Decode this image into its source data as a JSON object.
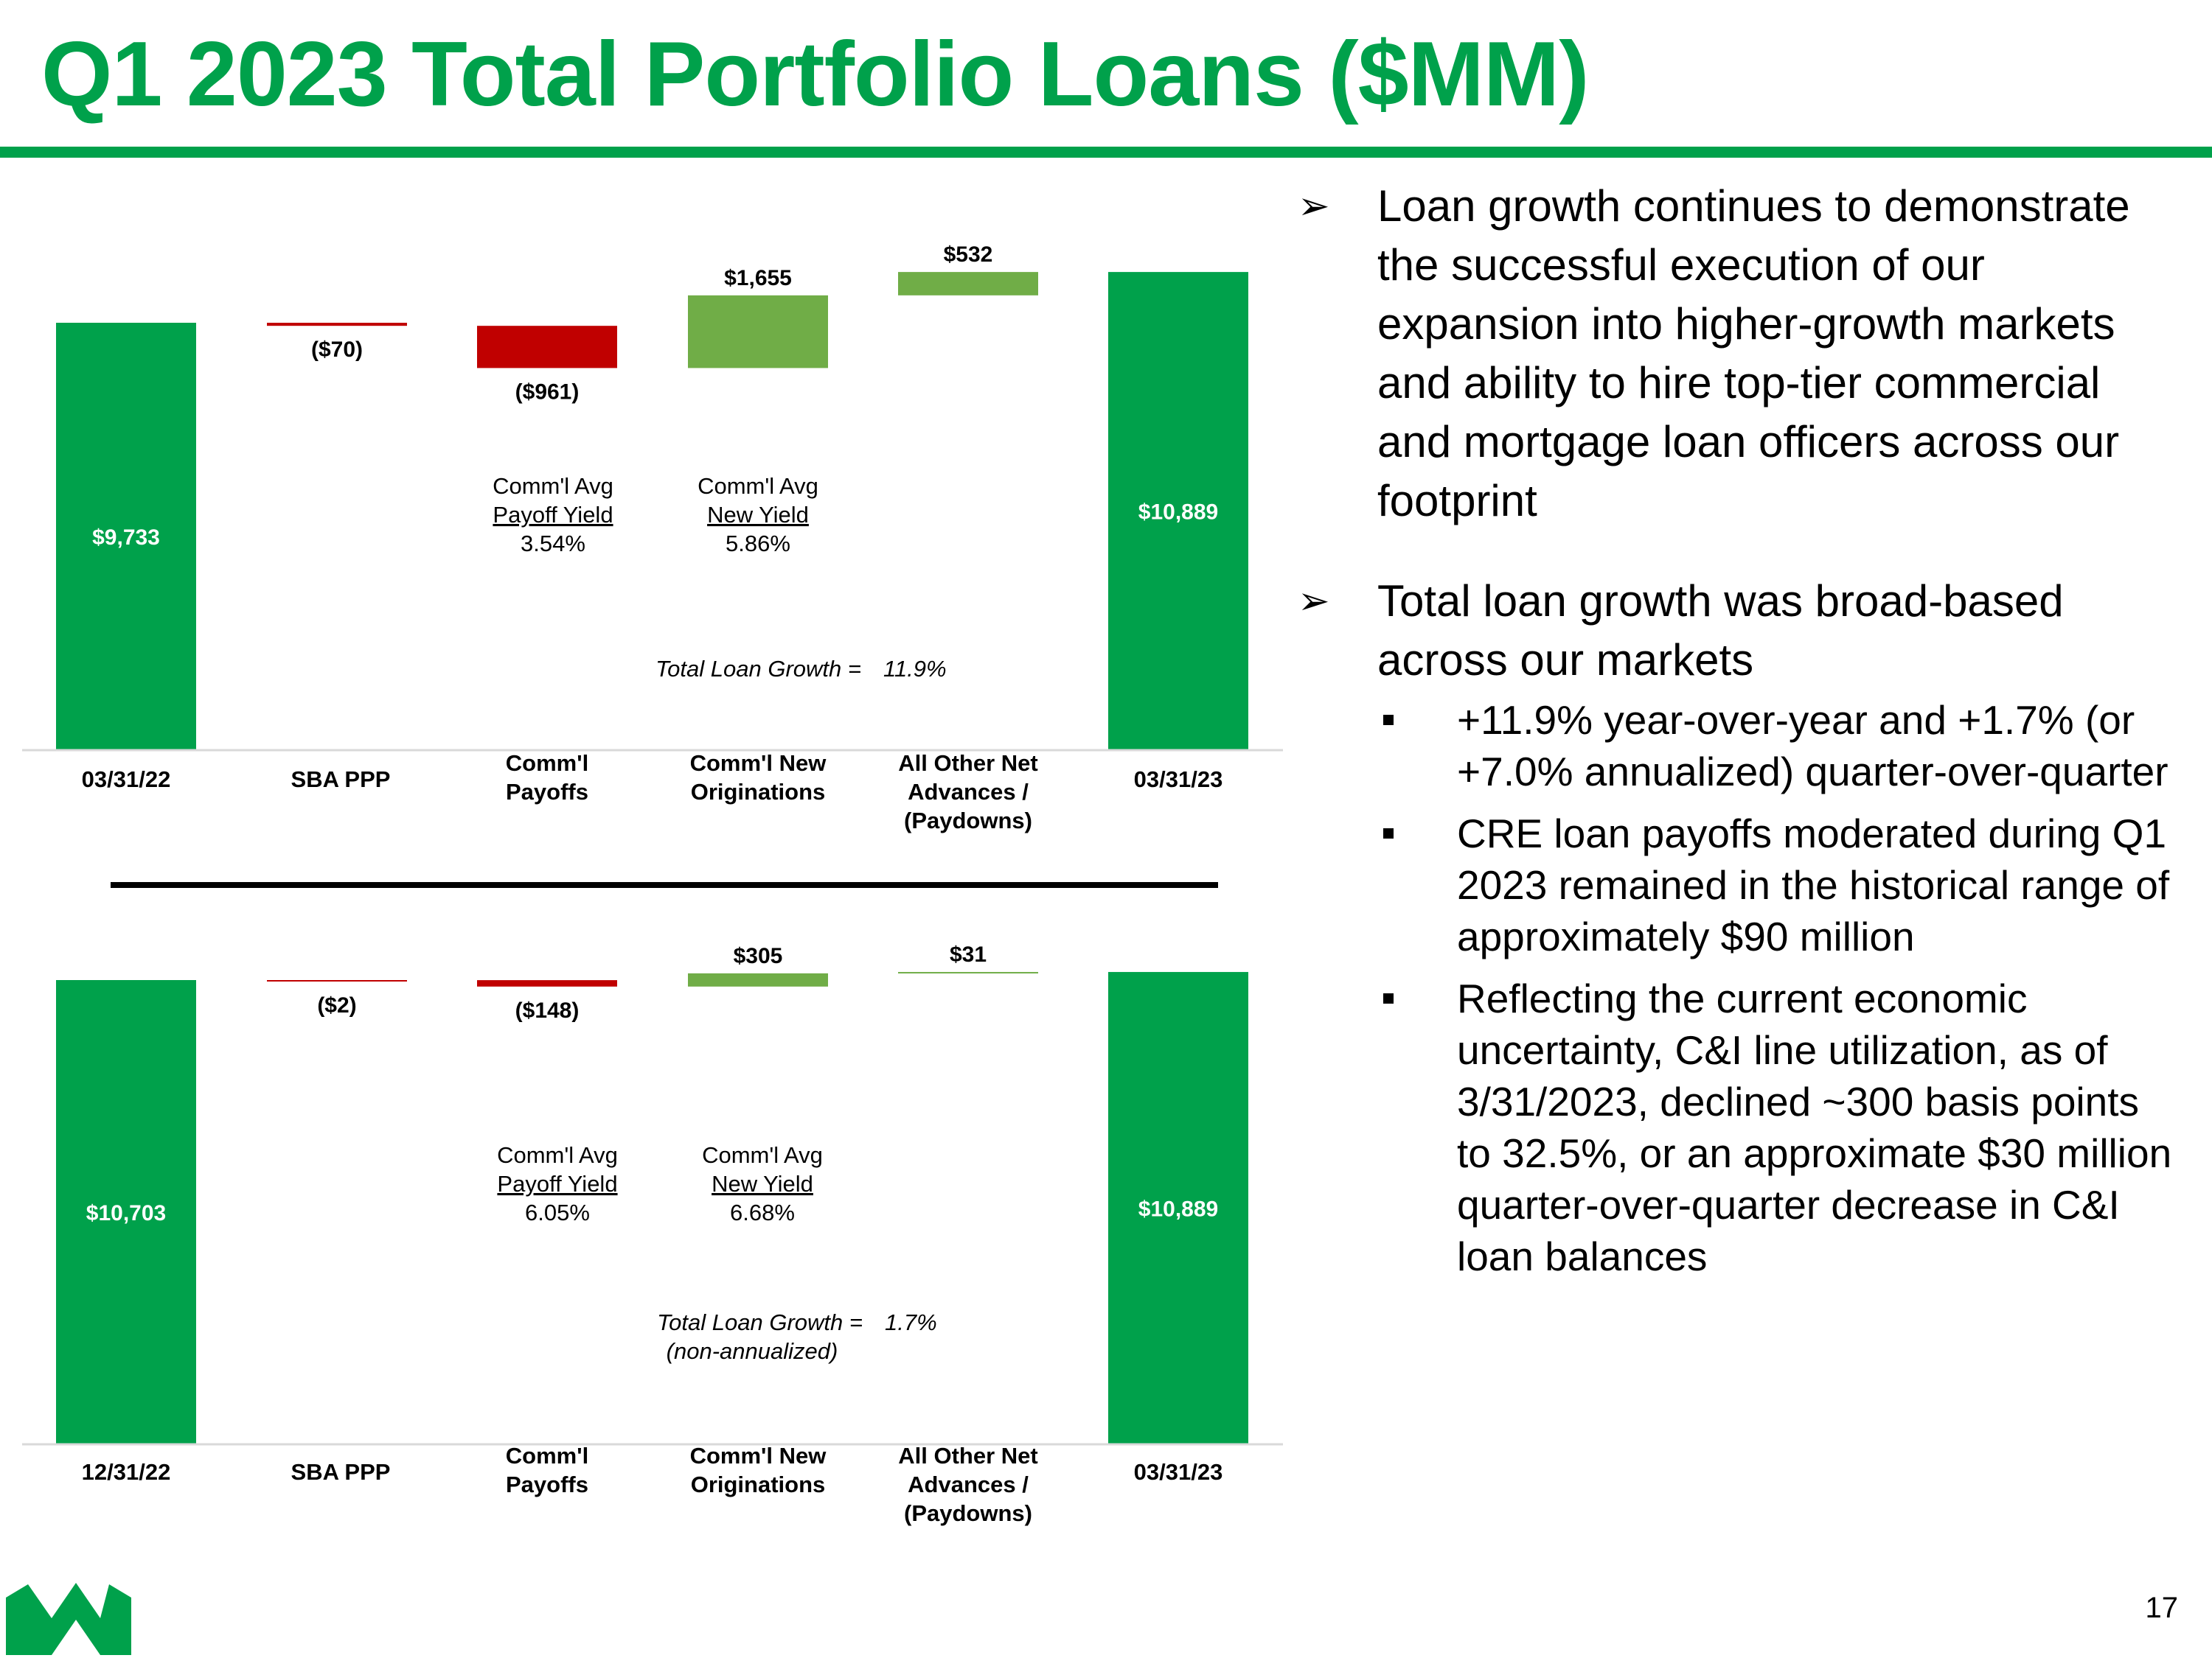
{
  "title": "Q1 2023 Total Portfolio Loans ($MM)",
  "page_number": "17",
  "colors": {
    "brand_green": "#00A14B",
    "increase_green": "#70AD47",
    "decrease_red": "#C00000"
  },
  "logo_icon": "webster-w-logo-icon",
  "chart_data": [
    {
      "type": "waterfall",
      "title": "",
      "categories": [
        "03/31/22",
        "SBA PPP",
        "Comm'l Payoffs",
        "Comm'l New Originations",
        "All Other Net Advances / (Paydowns)",
        "03/31/23"
      ],
      "values": [
        9733,
        -70,
        -961,
        1655,
        532,
        10889
      ],
      "data_labels": [
        "$9,733",
        "($70)",
        "($961)",
        "$1,655",
        "$532",
        "$10,889"
      ],
      "notes": {
        "payoff": {
          "line1": "Comm'l Avg",
          "line2": "Payoff Yield",
          "line3": "3.54%"
        },
        "new": {
          "line1": "Comm'l Avg",
          "line2": "New Yield",
          "line3": "5.86%"
        }
      },
      "growth_label": "Total Loan Growth =",
      "growth_sublabel": "",
      "growth_value": "11.9%"
    },
    {
      "type": "waterfall",
      "title": "",
      "categories": [
        "12/31/22",
        "SBA PPP",
        "Comm'l Payoffs",
        "Comm'l New Originations",
        "All Other Net Advances / (Paydowns)",
        "03/31/23"
      ],
      "values": [
        10703,
        -2,
        -148,
        305,
        31,
        10889
      ],
      "data_labels": [
        "$10,703",
        "($2)",
        "($148)",
        "$305",
        "$31",
        "$10,889"
      ],
      "notes": {
        "payoff": {
          "line1": "Comm'l Avg",
          "line2": "Payoff Yield",
          "line3": "6.05%"
        },
        "new": {
          "line1": "Comm'l Avg",
          "line2": "New Yield",
          "line3": "6.68%"
        }
      },
      "growth_label": "Total Loan Growth =",
      "growth_sublabel": "(non-annualized)",
      "growth_value": "1.7%"
    }
  ],
  "bullets": [
    {
      "text": "Loan growth continues to demonstrate the successful execution of our expansion into higher-growth markets and ability to hire top-tier commercial and mortgage loan officers across our footprint",
      "sub": []
    },
    {
      "text": "Total loan growth was broad-based across our markets",
      "sub": [
        "+11.9% year-over-year and +1.7% (or +7.0% annualized) quarter-over-quarter",
        "CRE loan payoffs moderated during Q1 2023 remained in the historical range of approximately $90 million",
        "Reflecting the current economic uncertainty, C&I line utilization, as of 3/31/2023, declined ~300 basis points to 32.5%, or an approximate $30 million quarter-over-quarter decrease in C&I loan balances"
      ]
    }
  ]
}
